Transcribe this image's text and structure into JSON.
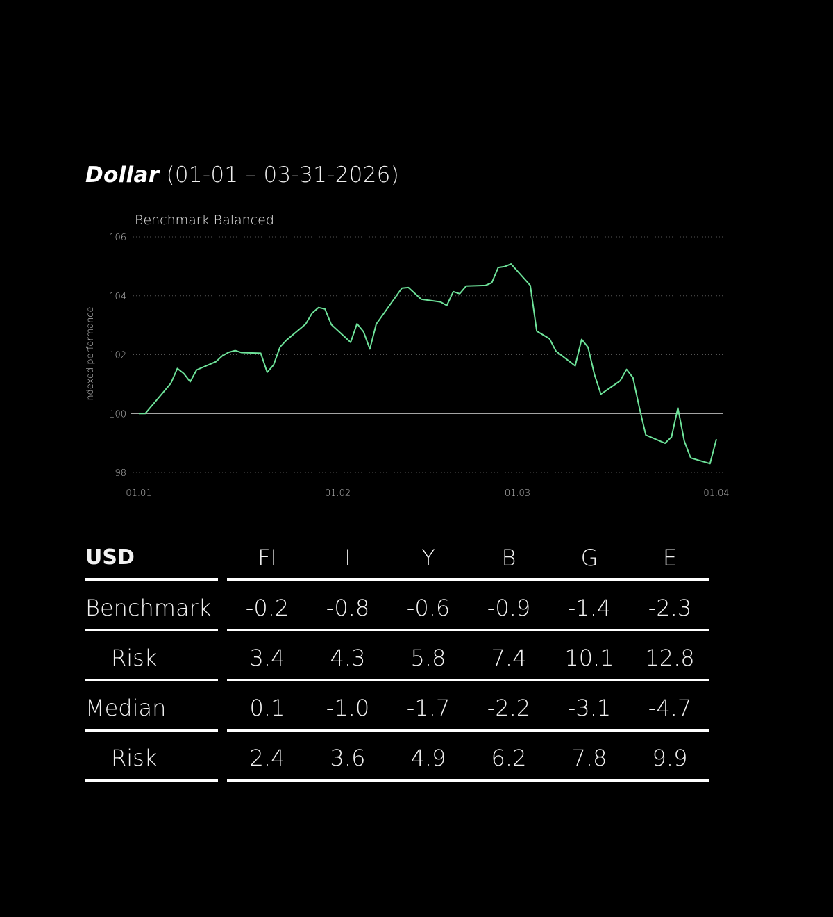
{
  "title": {
    "main": "Dollar",
    "range": "(01-01 – 03-31-2026)"
  },
  "chart_data": {
    "type": "line",
    "subtitle": "Benchmark Balanced",
    "ylabel": "Indexed performance",
    "xlabel": "",
    "ylim": [
      98,
      106
    ],
    "yticks": [
      98,
      100,
      102,
      104,
      106
    ],
    "xlim": [
      "2026-01-01",
      "2026-04-01"
    ],
    "xticks": [
      {
        "date": "2026-01-01",
        "label": "01.01"
      },
      {
        "date": "2026-02-01",
        "label": "01.02"
      },
      {
        "date": "2026-03-01",
        "label": "01.03"
      },
      {
        "date": "2026-04-01",
        "label": "01.04"
      }
    ],
    "baseline": 100,
    "grid": "horizontal dotted",
    "line_color": "#6ee39a",
    "series": [
      {
        "x": [
          "2026-01-01",
          "2026-01-02",
          "2026-01-06",
          "2026-01-07",
          "2026-01-08",
          "2026-01-09",
          "2026-01-10",
          "2026-01-13",
          "2026-01-14",
          "2026-01-15",
          "2026-01-16",
          "2026-01-17",
          "2026-01-20",
          "2026-01-21",
          "2026-01-22",
          "2026-01-23",
          "2026-01-24",
          "2026-01-27",
          "2026-01-28",
          "2026-01-29",
          "2026-01-30",
          "2026-01-31",
          "2026-02-03",
          "2026-02-04",
          "2026-02-05",
          "2026-02-06",
          "2026-02-07",
          "2026-02-11",
          "2026-02-12",
          "2026-02-14",
          "2026-02-17",
          "2026-02-18",
          "2026-02-19",
          "2026-02-20",
          "2026-02-21",
          "2026-02-24",
          "2026-02-25",
          "2026-02-26",
          "2026-02-27",
          "2026-02-28",
          "2026-03-03",
          "2026-03-04",
          "2026-03-06",
          "2026-03-07",
          "2026-03-10",
          "2026-03-11",
          "2026-03-12",
          "2026-03-13",
          "2026-03-14",
          "2026-03-17",
          "2026-03-18",
          "2026-03-19",
          "2026-03-20",
          "2026-03-21",
          "2026-03-24",
          "2026-03-25",
          "2026-03-26",
          "2026-03-27",
          "2026-03-28",
          "2026-03-31",
          "2026-04-01"
        ],
        "y": [
          100,
          100,
          101.03,
          101.53,
          101.36,
          101.08,
          101.48,
          101.76,
          101.96,
          102.08,
          102.14,
          102.07,
          102.05,
          101.4,
          101.65,
          102.26,
          102.49,
          103.04,
          103.41,
          103.6,
          103.55,
          103.02,
          102.42,
          103.05,
          102.78,
          102.19,
          103.04,
          104.26,
          104.28,
          103.88,
          103.79,
          103.67,
          104.14,
          104.07,
          104.33,
          104.35,
          104.44,
          104.96,
          104.99,
          105.08,
          104.35,
          102.8,
          102.54,
          102.12,
          101.62,
          102.52,
          102.25,
          101.32,
          100.66,
          101.11,
          101.5,
          101.22,
          100.19,
          99.27,
          98.99,
          99.2,
          100.19,
          99.06,
          98.49,
          98.3,
          99.13
        ]
      }
    ]
  },
  "table": {
    "header": {
      "label": "USD",
      "columns": [
        "FI",
        "I",
        "Y",
        "B",
        "G",
        "E"
      ]
    },
    "rows": [
      {
        "label": "Benchmark",
        "indent": false,
        "values": [
          "-0.2",
          "-0.8",
          "-0.6",
          "-0.9",
          "-1.4",
          "-2.3"
        ]
      },
      {
        "label": "Risk",
        "indent": true,
        "values": [
          "3.4",
          "4.3",
          "5.8",
          "7.4",
          "10.1",
          "12.8"
        ]
      },
      {
        "label": "Median",
        "indent": false,
        "values": [
          "0.1",
          "-1.0",
          "-1.7",
          "-2.2",
          "-3.1",
          "-4.7"
        ]
      },
      {
        "label": "Risk",
        "indent": true,
        "values": [
          "2.4",
          "3.6",
          "4.9",
          "6.2",
          "7.8",
          "9.9"
        ]
      }
    ]
  }
}
